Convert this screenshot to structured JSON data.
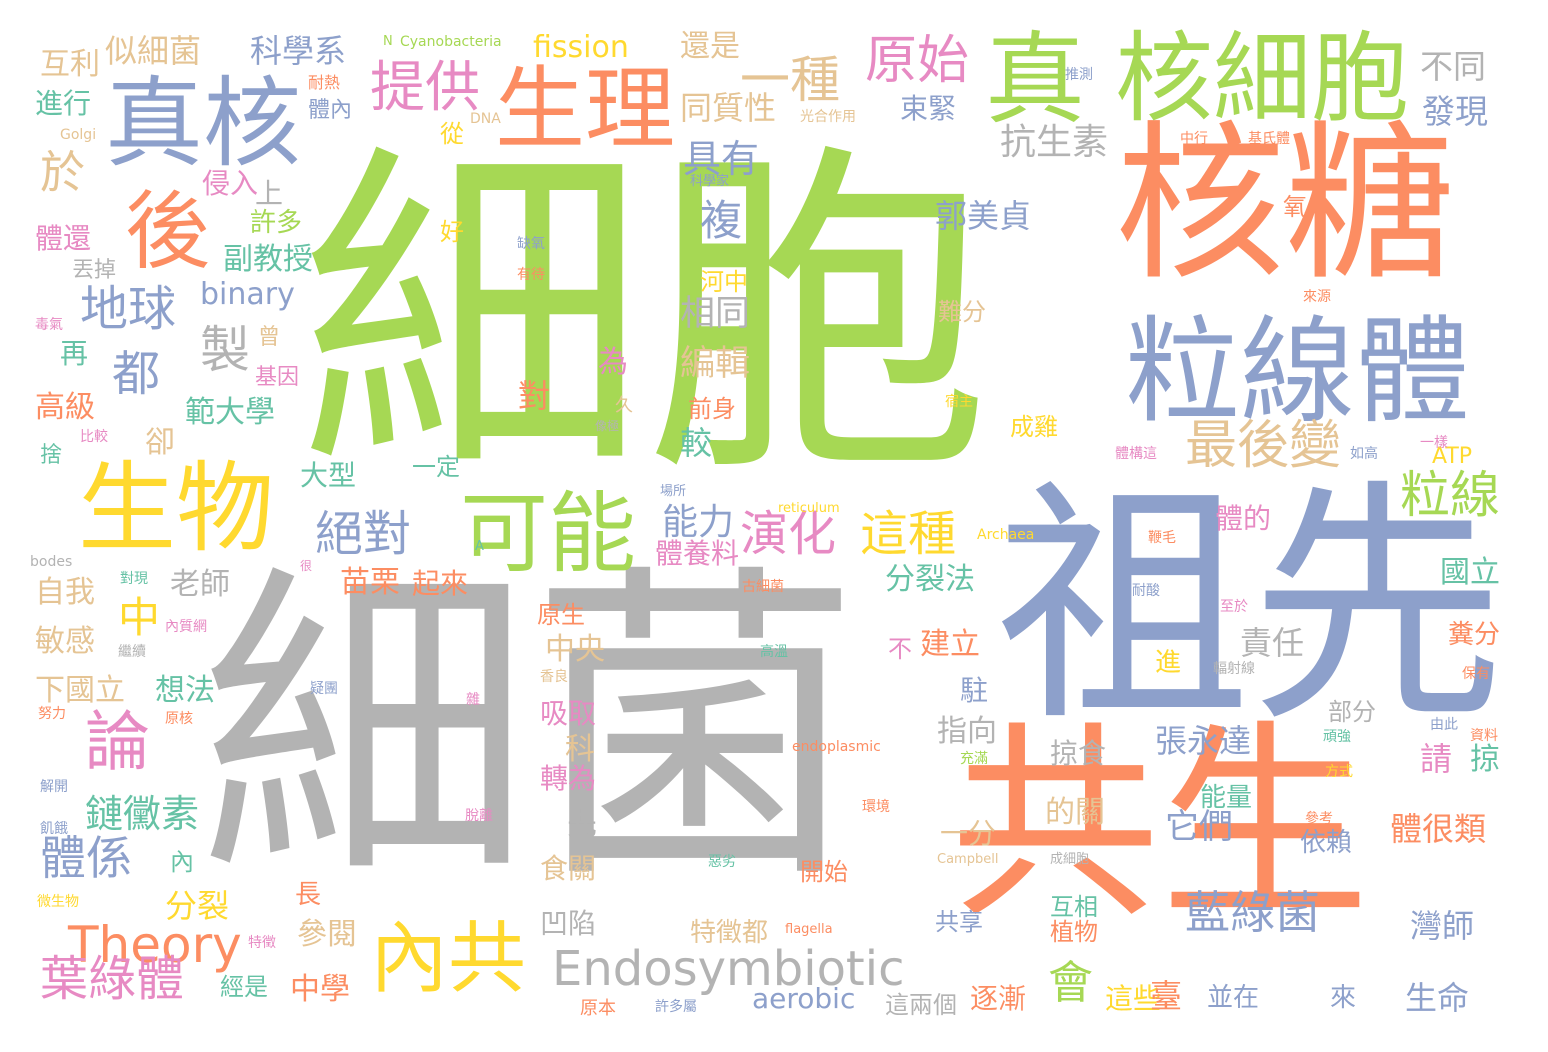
{
  "palette": {
    "green": "#a6d854",
    "orange": "#fc8d62",
    "blue": "#8da0cb",
    "gray": "#b3b3b3",
    "yellow": "#ffd92f",
    "pink": "#e78ac3",
    "tan": "#e5c494",
    "teal": "#66c2a5"
  },
  "words": [
    {
      "text": "細胞",
      "color": "green"
    },
    {
      "text": "細菌",
      "color": "gray"
    },
    {
      "text": "祖先",
      "color": "blue"
    },
    {
      "text": "共生",
      "color": "orange"
    },
    {
      "text": "核糖",
      "color": "orange"
    },
    {
      "text": "粒線體",
      "color": "blue"
    },
    {
      "text": "核細胞",
      "color": "green"
    },
    {
      "text": "真核",
      "color": "blue"
    },
    {
      "text": "真",
      "color": "green"
    },
    {
      "text": "生理",
      "color": "orange"
    },
    {
      "text": "生物",
      "color": "yellow"
    },
    {
      "text": "後",
      "color": "orange"
    },
    {
      "text": "可能",
      "color": "green"
    },
    {
      "text": "內共",
      "color": "yellow"
    },
    {
      "text": "Endosymbiotic",
      "color": "gray"
    },
    {
      "text": "Theory",
      "color": "orange"
    },
    {
      "text": "論",
      "color": "pink"
    },
    {
      "text": "原始",
      "color": "pink"
    },
    {
      "text": "一種",
      "color": "tan"
    },
    {
      "text": "提供",
      "color": "pink"
    },
    {
      "text": "地球",
      "color": "blue"
    },
    {
      "text": "製",
      "color": "gray"
    },
    {
      "text": "都",
      "color": "blue"
    },
    {
      "text": "最後變",
      "color": "tan"
    },
    {
      "text": "粒線",
      "color": "green"
    },
    {
      "text": "這種",
      "color": "yellow"
    },
    {
      "text": "演化",
      "color": "pink"
    },
    {
      "text": "絕對",
      "color": "blue"
    },
    {
      "text": "藍綠菌",
      "color": "blue"
    },
    {
      "text": "會",
      "color": "green"
    },
    {
      "text": "葉綠體",
      "color": "pink"
    },
    {
      "text": "體係",
      "color": "blue"
    },
    {
      "text": "鏈黴素",
      "color": "teal"
    },
    {
      "text": "中",
      "color": "yellow"
    },
    {
      "text": "於",
      "color": "tan"
    },
    {
      "text": "複",
      "color": "blue"
    },
    {
      "text": "具有",
      "color": "blue"
    },
    {
      "text": "相同",
      "color": "gray"
    },
    {
      "text": "編輯",
      "color": "tan"
    },
    {
      "text": "能力",
      "color": "blue"
    },
    {
      "text": "郭美貞",
      "color": "blue"
    },
    {
      "text": "抗生素",
      "color": "gray"
    },
    {
      "text": "同質性",
      "color": "tan"
    },
    {
      "text": "束緊",
      "color": "blue"
    },
    {
      "text": "不同",
      "color": "gray"
    },
    {
      "text": "發現",
      "color": "blue"
    },
    {
      "text": "科學系",
      "color": "blue"
    },
    {
      "text": "似細菌",
      "color": "tan"
    },
    {
      "text": "fission",
      "color": "yellow"
    },
    {
      "text": "還是",
      "color": "tan"
    },
    {
      "text": "互利",
      "color": "tan"
    },
    {
      "text": "進行",
      "color": "teal"
    },
    {
      "text": "體還",
      "color": "pink"
    },
    {
      "text": "侵入",
      "color": "pink"
    },
    {
      "text": "許多",
      "color": "green"
    },
    {
      "text": "副教授",
      "color": "teal"
    },
    {
      "text": "binary",
      "color": "blue"
    },
    {
      "text": "上",
      "color": "gray"
    },
    {
      "text": "再",
      "color": "teal"
    },
    {
      "text": "高級",
      "color": "orange"
    },
    {
      "text": "範大學",
      "color": "teal"
    },
    {
      "text": "卻",
      "color": "tan"
    },
    {
      "text": "大型",
      "color": "teal"
    },
    {
      "text": "老師",
      "color": "gray"
    },
    {
      "text": "自我",
      "color": "tan"
    },
    {
      "text": "敏感",
      "color": "tan"
    },
    {
      "text": "下國立",
      "color": "tan"
    },
    {
      "text": "想法",
      "color": "teal"
    },
    {
      "text": "苗栗",
      "color": "orange"
    },
    {
      "text": "起來",
      "color": "orange"
    },
    {
      "text": "分裂",
      "color": "yellow"
    },
    {
      "text": "分裂法",
      "color": "teal"
    },
    {
      "text": "國立",
      "color": "teal"
    },
    {
      "text": "責任",
      "color": "gray"
    },
    {
      "text": "建立",
      "color": "orange"
    },
    {
      "text": "駐",
      "color": "blue"
    },
    {
      "text": "指向",
      "color": "gray"
    },
    {
      "text": "張永達",
      "color": "blue"
    },
    {
      "text": "掠食",
      "color": "gray"
    },
    {
      "text": "部分",
      "color": "gray"
    },
    {
      "text": "請",
      "color": "pink"
    },
    {
      "text": "掠",
      "color": "teal"
    },
    {
      "text": "能量",
      "color": "teal"
    },
    {
      "text": "它們",
      "color": "blue"
    },
    {
      "text": "體很類",
      "color": "orange"
    },
    {
      "text": "依賴",
      "color": "blue"
    },
    {
      "text": "互相",
      "color": "teal"
    },
    {
      "text": "植物",
      "color": "orange"
    },
    {
      "text": "灣師",
      "color": "blue"
    },
    {
      "text": "生命",
      "color": "blue"
    },
    {
      "text": "這些",
      "color": "yellow"
    },
    {
      "text": "逐漸",
      "color": "orange"
    },
    {
      "text": "並在",
      "color": "blue"
    },
    {
      "text": "臺",
      "color": "orange"
    },
    {
      "text": "來",
      "color": "blue"
    },
    {
      "text": "共享",
      "color": "blue"
    },
    {
      "text": "這兩個",
      "color": "gray"
    },
    {
      "text": "aerobic",
      "color": "blue"
    },
    {
      "text": "中學",
      "color": "orange"
    },
    {
      "text": "參閱",
      "color": "tan"
    },
    {
      "text": "特徵都",
      "color": "tan"
    },
    {
      "text": "凹陷",
      "color": "gray"
    },
    {
      "text": "經是",
      "color": "teal"
    },
    {
      "text": "長",
      "color": "orange"
    },
    {
      "text": "吸取",
      "color": "pink"
    },
    {
      "text": "轉為",
      "color": "pink"
    },
    {
      "text": "中央",
      "color": "tan"
    },
    {
      "text": "科",
      "color": "tan"
    },
    {
      "text": "先",
      "color": "gray"
    },
    {
      "text": "食關",
      "color": "tan"
    },
    {
      "text": "原生",
      "color": "orange"
    },
    {
      "text": "的關",
      "color": "tan"
    },
    {
      "text": "一分",
      "color": "tan"
    },
    {
      "text": "成雞",
      "color": "yellow"
    },
    {
      "text": "一定",
      "color": "teal"
    },
    {
      "text": "為",
      "color": "pink"
    },
    {
      "text": "對",
      "color": "orange"
    },
    {
      "text": "較",
      "color": "teal"
    },
    {
      "text": "體養料",
      "color": "pink"
    },
    {
      "text": "體的",
      "color": "pink"
    },
    {
      "text": "氧",
      "color": "orange"
    },
    {
      "text": "難分",
      "color": "tan"
    },
    {
      "text": "前身",
      "color": "orange"
    },
    {
      "text": "河中",
      "color": "yellow"
    },
    {
      "text": "好",
      "color": "yellow"
    },
    {
      "text": "從",
      "color": "yellow"
    },
    {
      "text": "體內",
      "color": "blue"
    },
    {
      "text": "丟掉",
      "color": "gray"
    },
    {
      "text": "曾",
      "color": "tan"
    },
    {
      "text": "基因",
      "color": "pink"
    },
    {
      "text": "捨",
      "color": "teal"
    },
    {
      "text": "內",
      "color": "teal"
    },
    {
      "text": "不",
      "color": "pink"
    },
    {
      "text": "進",
      "color": "yellow"
    },
    {
      "text": "開始",
      "color": "orange"
    },
    {
      "text": "ATP",
      "color": "yellow"
    },
    {
      "text": "糞分",
      "color": "orange"
    },
    {
      "text": "久",
      "color": "tan"
    },
    {
      "text": "耐熱",
      "color": "orange"
    },
    {
      "text": "Golgi",
      "color": "tan"
    },
    {
      "text": "DNA",
      "color": "tan"
    },
    {
      "text": "推測",
      "color": "blue"
    },
    {
      "text": "光合作用",
      "color": "tan"
    },
    {
      "text": "科學家",
      "color": "blue"
    },
    {
      "text": "缺氧",
      "color": "blue"
    },
    {
      "text": "有待",
      "color": "orange"
    },
    {
      "text": "中行",
      "color": "orange"
    },
    {
      "text": "基氏體",
      "color": "orange"
    },
    {
      "text": "毒氣",
      "color": "pink"
    },
    {
      "text": "比較",
      "color": "pink"
    },
    {
      "text": "來源",
      "color": "orange"
    },
    {
      "text": "宿主",
      "color": "yellow"
    },
    {
      "text": "像極",
      "color": "gray"
    },
    {
      "text": "如高",
      "color": "blue"
    },
    {
      "text": "一樣",
      "color": "pink"
    },
    {
      "text": "體構這",
      "color": "pink"
    },
    {
      "text": "場所",
      "color": "blue"
    },
    {
      "text": "reticulum",
      "color": "yellow"
    },
    {
      "text": "Archaea",
      "color": "yellow"
    },
    {
      "text": "bodes",
      "color": "gray"
    },
    {
      "text": "對現",
      "color": "teal"
    },
    {
      "text": "很",
      "color": "pink"
    },
    {
      "text": "A",
      "color": "teal"
    },
    {
      "text": "鞭毛",
      "color": "orange"
    },
    {
      "text": "古細菌",
      "color": "orange"
    },
    {
      "text": "耐酸",
      "color": "blue"
    },
    {
      "text": "至於",
      "color": "pink"
    },
    {
      "text": "內質網",
      "color": "pink"
    },
    {
      "text": "繼續",
      "color": "gray"
    },
    {
      "text": "高溫",
      "color": "teal"
    },
    {
      "text": "輻射線",
      "color": "gray"
    },
    {
      "text": "保有",
      "color": "orange"
    },
    {
      "text": "疑團",
      "color": "blue"
    },
    {
      "text": "雜",
      "color": "pink"
    },
    {
      "text": "香良",
      "color": "tan"
    },
    {
      "text": "努力",
      "color": "orange"
    },
    {
      "text": "原核",
      "color": "orange"
    },
    {
      "text": "由此",
      "color": "blue"
    },
    {
      "text": "endoplasmic",
      "color": "orange"
    },
    {
      "text": "頑強",
      "color": "teal"
    },
    {
      "text": "資料",
      "color": "orange"
    },
    {
      "text": "解開",
      "color": "blue"
    },
    {
      "text": "充滿",
      "color": "green"
    },
    {
      "text": "方式",
      "color": "yellow"
    },
    {
      "text": "飢餓",
      "color": "blue"
    },
    {
      "text": "脫離",
      "color": "pink"
    },
    {
      "text": "環境",
      "color": "orange"
    },
    {
      "text": "參考",
      "color": "orange"
    },
    {
      "text": "微生物",
      "color": "yellow"
    },
    {
      "text": "Campbell",
      "color": "tan"
    },
    {
      "text": "成細胞",
      "color": "gray"
    },
    {
      "text": "惡劣",
      "color": "teal"
    },
    {
      "text": "特徵",
      "color": "pink"
    },
    {
      "text": "flagella",
      "color": "orange"
    },
    {
      "text": "原本",
      "color": "orange"
    },
    {
      "text": "許多屬",
      "color": "blue"
    },
    {
      "text": "N",
      "color": "green"
    },
    {
      "text": "Cyanobacteria",
      "color": "green"
    }
  ]
}
